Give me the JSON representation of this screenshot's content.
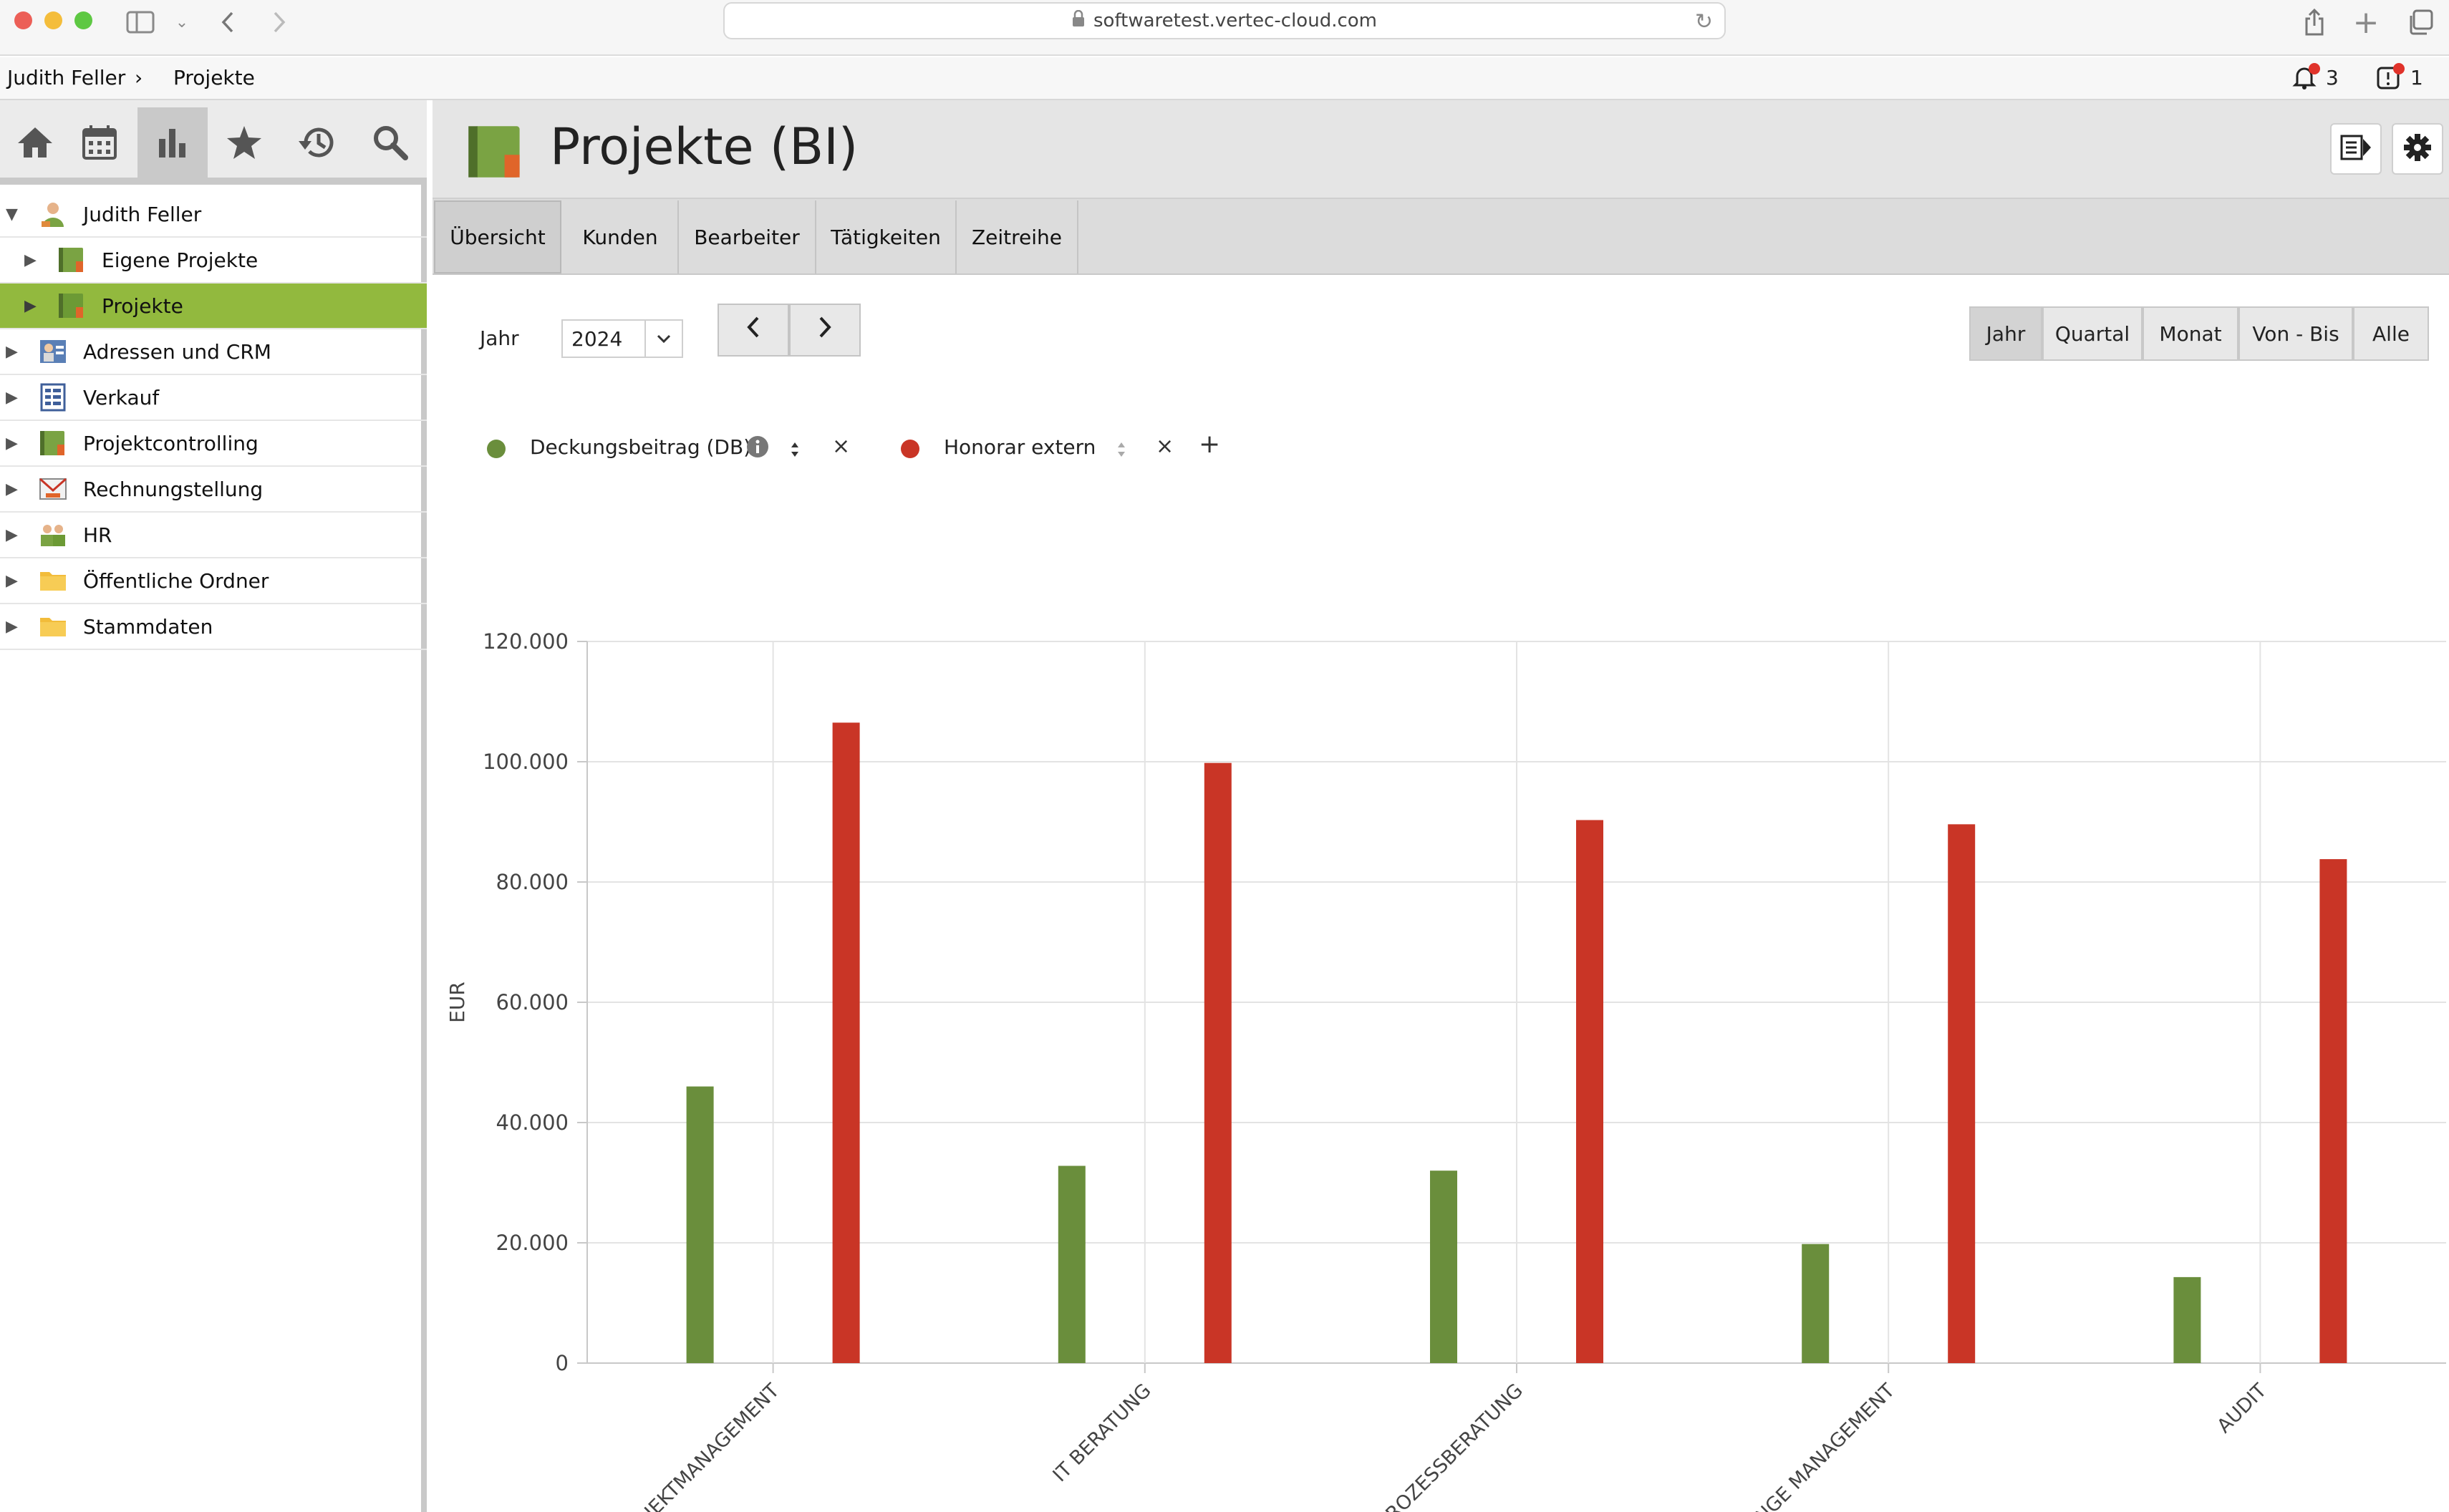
{
  "browser": {
    "url": "softwaretest.vertec-cloud.com"
  },
  "breadcrumb": {
    "user": "Judith Feller",
    "separator": "›",
    "current": "Projekte"
  },
  "notifications": {
    "bell_count": "3",
    "task_count": "1"
  },
  "sidebar": {
    "tools": [
      "home-icon",
      "calendar-icon",
      "chart-icon",
      "star-icon",
      "history-icon",
      "search-icon"
    ],
    "tree": [
      {
        "label": "Judith Feller",
        "icon": "user-icon",
        "expanded": true
      },
      {
        "label": "Eigene Projekte",
        "icon": "project-book-icon"
      },
      {
        "label": "Projekte",
        "icon": "project-book-icon",
        "selected": true
      },
      {
        "label": "Adressen und CRM",
        "icon": "contacts-icon"
      },
      {
        "label": "Verkauf",
        "icon": "sales-icon"
      },
      {
        "label": "Projektcontrolling",
        "icon": "project-book-icon"
      },
      {
        "label": "Rechnungstellung",
        "icon": "invoice-icon"
      },
      {
        "label": "HR",
        "icon": "people-icon"
      },
      {
        "label": "Öffentliche Ordner",
        "icon": "folder-icon"
      },
      {
        "label": "Stammdaten",
        "icon": "folder-icon"
      }
    ]
  },
  "page": {
    "title": "Projekte (BI)"
  },
  "tabs": [
    "Übersicht",
    "Kunden",
    "Bearbeiter",
    "Tätigkeiten",
    "Zeitreihe"
  ],
  "controls": {
    "year_label": "Jahr",
    "year_value": "2024",
    "prev": "‹",
    "next": "›",
    "ranges": [
      "Jahr",
      "Quartal",
      "Monat",
      "Von - Bis",
      "Alle"
    ]
  },
  "legend": {
    "items": [
      {
        "label": "Deckungsbeitrag (DB)",
        "color": "#6a8e3c"
      },
      {
        "label": "Honorar extern",
        "color": "#c93526"
      }
    ],
    "remove": "×",
    "add": "+"
  },
  "chart_data": {
    "type": "bar",
    "ylabel": "EUR",
    "ylim": [
      0,
      120000
    ],
    "yticks": [
      0,
      20000,
      40000,
      60000,
      80000,
      100000,
      120000
    ],
    "ytick_labels": [
      "0",
      "20.000",
      "40.000",
      "60.000",
      "80.000",
      "100.000",
      "120.000"
    ],
    "categories": [
      "PROJEKTMANAGEMENT",
      "IT BERATUNG",
      "PROZESSBERATUNG",
      "CHANGE MANAGEMENT",
      "AUDIT"
    ],
    "series": [
      {
        "name": "Deckungsbeitrag (DB)",
        "color": "#6a8e3c",
        "values": [
          46000,
          32800,
          32000,
          19800,
          14300
        ]
      },
      {
        "name": "Honorar extern",
        "color": "#c93526",
        "values": [
          106500,
          99800,
          90300,
          89600,
          83800
        ]
      }
    ]
  }
}
